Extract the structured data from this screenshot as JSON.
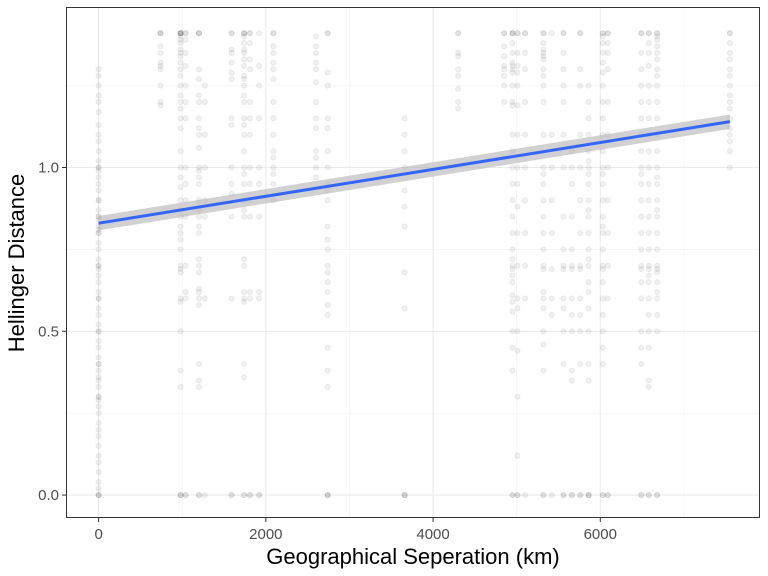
{
  "chart_data": {
    "type": "scatter",
    "title": "",
    "xlabel": "Geographical Seperation (km)",
    "ylabel": "Hellinger Distance",
    "xlim": [
      -390,
      7910
    ],
    "ylim": [
      -0.07,
      1.49
    ],
    "x_major_ticks": [
      0,
      2000,
      4000,
      6000
    ],
    "x_tick_labels": [
      "0",
      "2000",
      "4000",
      "6000"
    ],
    "x_minor_ticks": [
      1000,
      3000,
      5000,
      7000
    ],
    "y_major_ticks": [
      0.0,
      0.5,
      1.0
    ],
    "y_tick_labels": [
      "0.0",
      "0.5",
      "1.0"
    ],
    "y_minor_ticks": [
      0.25,
      0.75,
      1.25
    ],
    "grid": true,
    "legend": "none",
    "theme": "bw",
    "point_color": "#000000",
    "point_alpha": 0.06,
    "trend": {
      "method": "linear fit with confidence band",
      "color": "#3366ff",
      "band_color": "#b3b3b3",
      "x": [
        0,
        7550
      ],
      "y": [
        0.83,
        1.14
      ],
      "band_halfwidth": [
        0.022,
        0.022
      ]
    },
    "columns": [
      {
        "x": 0,
        "y": [
          0.0,
          0.02,
          0.04,
          0.07,
          0.1,
          0.12,
          0.15,
          0.18,
          0.2,
          0.22,
          0.25,
          0.27,
          0.29,
          0.3,
          0.33,
          0.35,
          0.36,
          0.38,
          0.4,
          0.42,
          0.45,
          0.47,
          0.5,
          0.52,
          0.55,
          0.57,
          0.6,
          0.62,
          0.65,
          0.67,
          0.69,
          0.7,
          0.72,
          0.75,
          0.77,
          0.8,
          0.81,
          0.82,
          0.84,
          0.85,
          0.87,
          0.9,
          0.93,
          0.95,
          0.97,
          0.99,
          1.0,
          1.02,
          1.05,
          1.08,
          1.1,
          1.13,
          1.17,
          1.2,
          1.22,
          1.25,
          1.28,
          1.3,
          1.0,
          0.9,
          0.85,
          0.8,
          0.7,
          0.6,
          0.5,
          0.4,
          0.3,
          0.0,
          0.0
        ]
      },
      {
        "x": 740,
        "y": [
          1.41,
          1.41,
          1.41,
          1.37,
          1.35,
          1.32,
          1.31,
          1.3,
          1.25,
          1.2,
          1.19
        ]
      },
      {
        "x": 980,
        "y": [
          1.41,
          1.41,
          1.41,
          1.41,
          1.39,
          1.38,
          1.36,
          1.35,
          1.34,
          1.32,
          1.3,
          1.28,
          1.25,
          1.22,
          1.2,
          1.18,
          1.15,
          1.12,
          1.05,
          1.0,
          0.97,
          0.94,
          0.9,
          0.87,
          0.85,
          0.82,
          0.8,
          0.78,
          0.75,
          0.7,
          0.69,
          0.68,
          0.6,
          0.59,
          0.5,
          0.38,
          0.33,
          0.0,
          0.0,
          0.0,
          1.41,
          1.4
        ]
      },
      {
        "x": 1040,
        "y": [
          1.41,
          1.41,
          1.39,
          1.35,
          1.31,
          1.25,
          1.2,
          1.15,
          1.0,
          0.95,
          0.9,
          0.85,
          0.7,
          0.62,
          0.6,
          0.0,
          0.0
        ]
      },
      {
        "x": 1200,
        "y": [
          1.41,
          1.41,
          1.3,
          1.27,
          1.22,
          1.2,
          1.15,
          1.12,
          1.1,
          1.06,
          1.0,
          0.99,
          0.97,
          0.95,
          0.9,
          0.87,
          0.85,
          0.82,
          0.8,
          0.72,
          0.7,
          0.68,
          0.63,
          0.62,
          0.6,
          0.58,
          0.4,
          0.35,
          0.33,
          0.0,
          0.0,
          1.41
        ]
      },
      {
        "x": 1270,
        "y": [
          1.25,
          1.2,
          1.1,
          1.0,
          0.9,
          0.85,
          0.6,
          0.0
        ]
      },
      {
        "x": 1590,
        "y": [
          1.41,
          1.41,
          1.36,
          1.35,
          1.32,
          1.29,
          1.27,
          1.15,
          1.13,
          1.0,
          0.95,
          0.92,
          0.85,
          0.6,
          0.0,
          0.0
        ]
      },
      {
        "x": 1740,
        "y": [
          1.41,
          1.41,
          1.41,
          1.4,
          1.38,
          1.36,
          1.35,
          1.33,
          1.31,
          1.28,
          1.27,
          1.25,
          1.22,
          1.2,
          1.15,
          1.13,
          1.1,
          1.05,
          1.0,
          0.98,
          0.95,
          0.9,
          0.87,
          0.85,
          0.72,
          0.7,
          0.62,
          0.6,
          0.59,
          0.4,
          0.36,
          0.0,
          0.0
        ]
      },
      {
        "x": 1810,
        "y": [
          1.41,
          1.41,
          1.38,
          1.33,
          1.3,
          1.2,
          1.15,
          1.1,
          1.0,
          0.95,
          0.9,
          0.85,
          0.62,
          0.6,
          0.0,
          0.0
        ]
      },
      {
        "x": 1920,
        "y": [
          1.41,
          1.31,
          1.25,
          1.15,
          1.0,
          0.95,
          0.85,
          0.62,
          0.6,
          0.0,
          0.0
        ]
      },
      {
        "x": 2090,
        "y": [
          1.41,
          1.41,
          1.37,
          1.35,
          1.32,
          1.3,
          1.27,
          1.2,
          1.15,
          1.1,
          1.05,
          1.03,
          1.0,
          0.98,
          0.95,
          0.9
        ]
      },
      {
        "x": 2600,
        "y": [
          1.4,
          1.37,
          1.35,
          1.32,
          1.3,
          1.26,
          1.2,
          1.15,
          1.12,
          1.05,
          1.03,
          1.0,
          0.97
        ]
      },
      {
        "x": 2740,
        "y": [
          1.41,
          1.41,
          1.29,
          1.25,
          1.15,
          1.12,
          1.05,
          1.0,
          0.95,
          0.93,
          0.9,
          0.82,
          0.78,
          0.75,
          0.7,
          0.68,
          0.65,
          0.62,
          0.58,
          0.55,
          0.45,
          0.38,
          0.33,
          0.0,
          0.0,
          0.0
        ]
      },
      {
        "x": 3660,
        "y": [
          1.15,
          1.1,
          1.05,
          1.0,
          0.93,
          0.88,
          0.82,
          0.68,
          0.57,
          0.0,
          0.0,
          0.0
        ]
      },
      {
        "x": 4300,
        "y": [
          1.41,
          1.41,
          1.35,
          1.34,
          1.3,
          1.28,
          1.24,
          1.2,
          1.18
        ]
      },
      {
        "x": 4850,
        "y": [
          1.41,
          1.41,
          1.37,
          1.34,
          1.31,
          1.3,
          1.28,
          1.25,
          1.2
        ]
      },
      {
        "x": 4950,
        "y": [
          1.41,
          1.41,
          1.41,
          1.38,
          1.35,
          1.32,
          1.31,
          1.3,
          1.29,
          1.25,
          1.2,
          1.19,
          1.1,
          1.05,
          1.0,
          0.95,
          0.9,
          0.85,
          0.8,
          0.75,
          0.72,
          0.7,
          0.69,
          0.67,
          0.65,
          0.61,
          0.59,
          0.56,
          0.5,
          0.45,
          0.38,
          0.0,
          0.0
        ]
      },
      {
        "x": 5010,
        "y": [
          1.41,
          1.41,
          1.35,
          1.31,
          1.29,
          1.25,
          1.19,
          1.1,
          1.0,
          0.95,
          0.88,
          0.8,
          0.7,
          0.6,
          0.57,
          0.5,
          0.44,
          0.3,
          0.12,
          0.0,
          0.0
        ]
      },
      {
        "x": 5100,
        "y": [
          1.41,
          1.41,
          1.35,
          1.3,
          1.2,
          1.1,
          1.0,
          0.9,
          0.8,
          0.7,
          0.6,
          0.0
        ]
      },
      {
        "x": 5320,
        "y": [
          1.41,
          1.41,
          1.38,
          1.36,
          1.35,
          1.34,
          1.33,
          1.3,
          1.28,
          1.25,
          1.2,
          1.1,
          1.0,
          0.98,
          0.95,
          0.9,
          0.85,
          0.8,
          0.75,
          0.7,
          0.69,
          0.62,
          0.6,
          0.57,
          0.5,
          0.46,
          0.38,
          0.0,
          0.0
        ]
      },
      {
        "x": 5420,
        "y": [
          1.41,
          1.1,
          1.0,
          0.9,
          0.8,
          0.69,
          0.6,
          0.55,
          0.0
        ]
      },
      {
        "x": 5560,
        "y": [
          1.41,
          1.41,
          1.35,
          1.3,
          1.25,
          1.2,
          1.1,
          1.0,
          0.85,
          0.75,
          0.7,
          0.69,
          0.6,
          0.57,
          0.5,
          0.4,
          0.0,
          0.0
        ]
      },
      {
        "x": 5660,
        "y": [
          1.05,
          1.0,
          0.95,
          0.85,
          0.75,
          0.7,
          0.69,
          0.6,
          0.55,
          0.5,
          0.38,
          0.35,
          0.0,
          0.0
        ]
      },
      {
        "x": 5760,
        "y": [
          1.41,
          1.41,
          1.3,
          1.25,
          1.1,
          1.0,
          0.9,
          0.8,
          0.7,
          0.69,
          0.6,
          0.55,
          0.5,
          0.4,
          0.0,
          0.0
        ]
      },
      {
        "x": 5860,
        "y": [
          1.25,
          1.2,
          1.15,
          1.1,
          1.05,
          1.02,
          1.0,
          0.98,
          0.95,
          0.9,
          0.87,
          0.85,
          0.8,
          0.75,
          0.72,
          0.7,
          0.65,
          0.62,
          0.57,
          0.5,
          0.4,
          0.35,
          0.0,
          0.0,
          0.0
        ]
      },
      {
        "x": 6030,
        "y": [
          1.41,
          1.41,
          1.4,
          1.38,
          1.35,
          1.32,
          1.29,
          1.25,
          1.2,
          1.15,
          1.1,
          1.05,
          1.0,
          0.98,
          0.95,
          0.9,
          0.85,
          0.82,
          0.8,
          0.75,
          0.7,
          0.69,
          0.65,
          0.6,
          0.55,
          0.5,
          0.45,
          0.4,
          0.0,
          0.0
        ]
      },
      {
        "x": 6090,
        "y": [
          1.41,
          1.41,
          1.38,
          1.35,
          1.3,
          1.2,
          1.1,
          1.0,
          0.9,
          0.8,
          0.7,
          0.6,
          0.0,
          0.0
        ]
      },
      {
        "x": 6490,
        "y": [
          1.41,
          1.41,
          1.35,
          1.3,
          1.25,
          1.2,
          1.15,
          1.1,
          1.05,
          1.0,
          0.98,
          0.95,
          0.9,
          0.85,
          0.8,
          0.75,
          0.7,
          0.69,
          0.65,
          0.6,
          0.5,
          0.45,
          0.4,
          0.0,
          0.0
        ]
      },
      {
        "x": 6580,
        "y": [
          1.41,
          1.41,
          1.38,
          1.35,
          1.31,
          1.25,
          1.2,
          1.15,
          1.1,
          1.05,
          1.0,
          0.95,
          0.9,
          0.85,
          0.8,
          0.75,
          0.7,
          0.69,
          0.67,
          0.65,
          0.6,
          0.55,
          0.5,
          0.45,
          0.35,
          0.33,
          0.0,
          0.0
        ]
      },
      {
        "x": 6680,
        "y": [
          1.41,
          1.41,
          1.4,
          1.39,
          1.37,
          1.35,
          1.33,
          1.3,
          1.28,
          1.25,
          1.2,
          1.15,
          1.1,
          1.05,
          1.0,
          0.97,
          0.95,
          0.9,
          0.87,
          0.85,
          0.8,
          0.75,
          0.7,
          0.69,
          0.68,
          0.65,
          0.62,
          0.6,
          0.55,
          0.5,
          0.0,
          0.0
        ]
      },
      {
        "x": 7550,
        "y": [
          1.41,
          1.41,
          1.38,
          1.35,
          1.33,
          1.3,
          1.28,
          1.25,
          1.22,
          1.2,
          1.18,
          1.15,
          1.12,
          1.1,
          1.08,
          1.05,
          1.0
        ]
      }
    ]
  }
}
